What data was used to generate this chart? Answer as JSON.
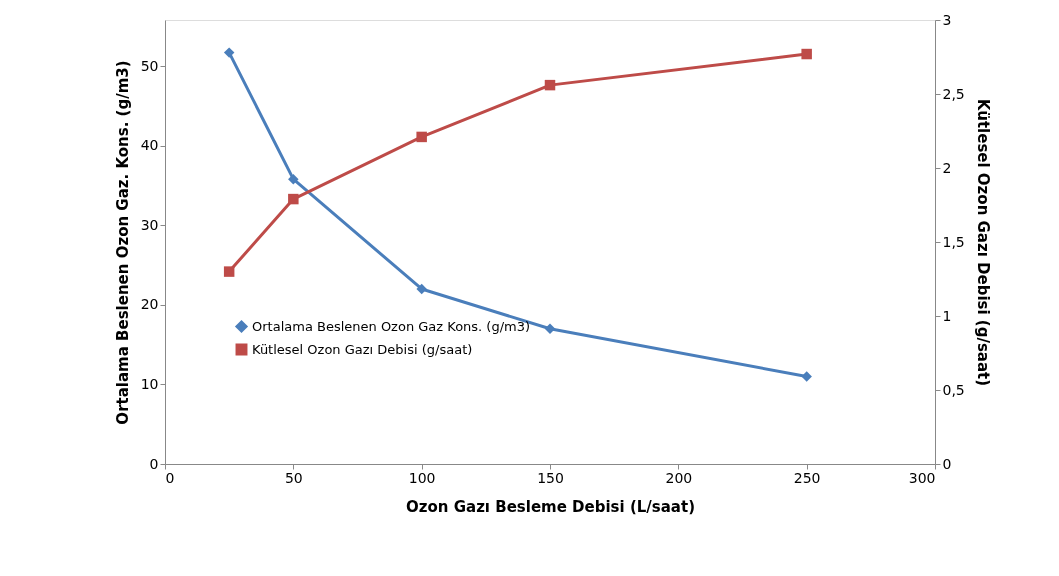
{
  "chart_data": {
    "type": "line",
    "xlabel": "Ozon Gazı Besleme Debisi (L/saat)",
    "ylabel": "Ortalama Beslenen Ozon Gaz. Kons. (g/m3)",
    "y2label": "Kütlesel Ozon Gazı Debisi (g/saat)",
    "x": [
      25,
      50,
      100,
      150,
      250
    ],
    "series": [
      {
        "name": "Ortalama Beslenen Ozon Gaz Kons. (g/m3)",
        "color": "#4a7ebb",
        "values": [
          51.7,
          35.8,
          22,
          17,
          11
        ],
        "marker": "diamond"
      },
      {
        "name": "Kütlesel Ozon Gazı Debisi (g/saat)",
        "color": "#be4b48",
        "values": [
          1.3,
          1.79,
          2.21,
          2.56,
          2.77
        ],
        "marker": "square",
        "axis": "y2"
      }
    ],
    "xlim": [
      0,
      300
    ],
    "xticks": [
      0,
      50,
      100,
      150,
      200,
      250,
      300
    ],
    "ylim": [
      0,
      55.8
    ],
    "yticks": [
      0,
      10,
      20,
      30,
      40,
      50
    ],
    "y2lim": [
      0,
      3
    ],
    "y2ticks": [
      0,
      {
        "value": 0.5,
        "label": "0,5"
      },
      1,
      {
        "value": 1.5,
        "label": "1,5"
      },
      2,
      {
        "value": 2.5,
        "label": "2,5"
      },
      3
    ],
    "grid": false,
    "legend": "bottom left",
    "line_style": "solid"
  }
}
